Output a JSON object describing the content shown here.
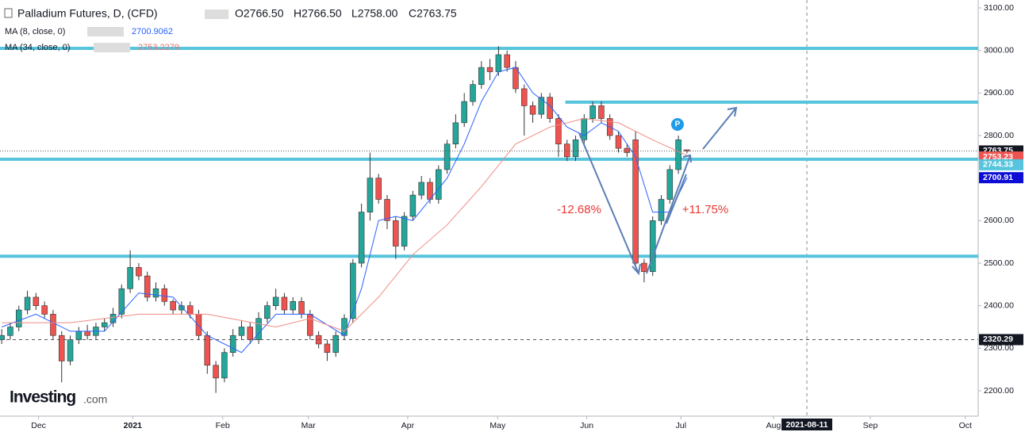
{
  "chart_data": {
    "type": "candlestick",
    "title": "Palladium Futures, D, (CFD)",
    "ohlc_labels": [
      "O2766.50",
      "H2766.50",
      "L2758.00",
      "C2763.75"
    ],
    "brand": [
      "Investing",
      ".com"
    ],
    "up_color": "#26a69a",
    "down_color": "#ef5350",
    "ylim": [
      2140.4,
      3118.6
    ],
    "xlim": [
      -0.2,
      114
    ],
    "yticks": [
      {
        "value": 2200,
        "label": "2200.00"
      },
      {
        "value": 2300,
        "label": "2300.00"
      },
      {
        "value": 2400,
        "label": "2400.00"
      },
      {
        "value": 2500,
        "label": "2500.00"
      },
      {
        "value": 2600,
        "label": "2600.00"
      },
      {
        "value": 2700,
        "label": "2700.00"
      },
      {
        "value": 2800,
        "label": "2800.00"
      },
      {
        "value": 2900,
        "label": "2900.00"
      },
      {
        "value": 3000,
        "label": "3000.00"
      },
      {
        "value": 3100,
        "label": "3100.00"
      }
    ],
    "xticks": [
      {
        "value": 4.3,
        "label": "Dec"
      },
      {
        "value": 15.3,
        "label": "2021"
      },
      {
        "value": 25.8,
        "label": "Feb"
      },
      {
        "value": 35.8,
        "label": "Mar"
      },
      {
        "value": 47.4,
        "label": "Apr"
      },
      {
        "value": 57.9,
        "label": "May"
      },
      {
        "value": 68.3,
        "label": "Jun"
      },
      {
        "value": 79.3,
        "label": "Jul"
      },
      {
        "value": 90.1,
        "label": "Aug"
      },
      {
        "value": 101.4,
        "label": "Sep"
      },
      {
        "value": 112.5,
        "label": "Oct"
      }
    ],
    "open": [
      2320,
      2330,
      2350,
      2390,
      2420,
      2400,
      2380,
      2330,
      2270,
      2320,
      2340,
      2330,
      2350,
      2360,
      2380,
      2440,
      2490,
      2470,
      2420,
      2440,
      2410,
      2390,
      2400,
      2380,
      2330,
      2260,
      2230,
      2290,
      2330,
      2350,
      2320,
      2370,
      2400,
      2420,
      2390,
      2410,
      2380,
      2330,
      2310,
      2290,
      2330,
      2370,
      2500,
      2620,
      2700,
      2650,
      2600,
      2540,
      2610,
      2660,
      2690,
      2650,
      2720,
      2780,
      2830,
      2880,
      2920,
      2960,
      2950,
      2990,
      2960,
      2910,
      2870,
      2850,
      2890,
      2840,
      2780,
      2750,
      2790,
      2840,
      2870,
      2840,
      2800,
      2770,
      2790,
      2500,
      2480,
      2600,
      2650,
      2720,
      2766.5
    ],
    "high": [
      2345,
      2360,
      2400,
      2435,
      2430,
      2410,
      2390,
      2340,
      2330,
      2350,
      2355,
      2360,
      2370,
      2395,
      2450,
      2530,
      2500,
      2480,
      2455,
      2450,
      2415,
      2410,
      2410,
      2390,
      2340,
      2270,
      2300,
      2345,
      2365,
      2360,
      2385,
      2410,
      2440,
      2430,
      2420,
      2420,
      2390,
      2340,
      2320,
      2340,
      2380,
      2510,
      2640,
      2760,
      2710,
      2660,
      2610,
      2620,
      2670,
      2705,
      2700,
      2730,
      2790,
      2850,
      2900,
      2930,
      2975,
      2980,
      3010,
      3000,
      2975,
      2920,
      2880,
      2900,
      2900,
      2850,
      2790,
      2800,
      2850,
      2880,
      2880,
      2850,
      2810,
      2780,
      2810,
      2510,
      2610,
      2660,
      2730,
      2800,
      2766.5
    ],
    "low": [
      2310,
      2320,
      2340,
      2380,
      2390,
      2370,
      2320,
      2220,
      2260,
      2310,
      2320,
      2320,
      2340,
      2350,
      2370,
      2430,
      2460,
      2410,
      2410,
      2400,
      2380,
      2380,
      2370,
      2320,
      2240,
      2195,
      2220,
      2280,
      2320,
      2310,
      2310,
      2360,
      2390,
      2380,
      2380,
      2370,
      2320,
      2300,
      2270,
      2280,
      2320,
      2360,
      2490,
      2600,
      2640,
      2580,
      2510,
      2530,
      2600,
      2650,
      2640,
      2640,
      2710,
      2770,
      2820,
      2870,
      2910,
      2930,
      2940,
      2950,
      2900,
      2800,
      2830,
      2840,
      2830,
      2750,
      2740,
      2740,
      2780,
      2830,
      2830,
      2790,
      2760,
      2750,
      2490,
      2455,
      2470,
      2590,
      2640,
      2710,
      2758
    ],
    "close": [
      2330,
      2350,
      2390,
      2420,
      2400,
      2380,
      2330,
      2270,
      2320,
      2340,
      2330,
      2350,
      2360,
      2380,
      2440,
      2490,
      2470,
      2420,
      2440,
      2410,
      2390,
      2400,
      2380,
      2330,
      2260,
      2230,
      2290,
      2330,
      2350,
      2320,
      2370,
      2400,
      2420,
      2390,
      2410,
      2380,
      2330,
      2310,
      2290,
      2330,
      2370,
      2500,
      2620,
      2700,
      2650,
      2600,
      2540,
      2610,
      2660,
      2690,
      2650,
      2720,
      2780,
      2830,
      2880,
      2920,
      2960,
      2950,
      2990,
      2960,
      2910,
      2870,
      2850,
      2890,
      2840,
      2780,
      2750,
      2790,
      2840,
      2870,
      2840,
      2800,
      2770,
      2760,
      2500,
      2480,
      2600,
      2650,
      2720,
      2790,
      2763.75
    ],
    "series": [
      {
        "name": "MA (8, close, 0)",
        "value_label": "2700.9062",
        "color": "#2962ff",
        "x": [
          0,
          4,
          8,
          12,
          16,
          20,
          24,
          28,
          32,
          36,
          40,
          42,
          44,
          46,
          48,
          50,
          52,
          54,
          56,
          58,
          60,
          62,
          64,
          66,
          68,
          70,
          72,
          74,
          76,
          78,
          80
        ],
        "values": [
          2350,
          2380,
          2340,
          2340,
          2430,
          2420,
          2330,
          2290,
          2380,
          2380,
          2330,
          2440,
          2600,
          2610,
          2600,
          2650,
          2700,
          2780,
          2880,
          2950,
          2960,
          2900,
          2870,
          2820,
          2800,
          2830,
          2810,
          2750,
          2620,
          2620,
          2700.9062
        ]
      },
      {
        "name": "MA (34, close, 0)",
        "value_label": "2753.2279",
        "color": "#f28b82",
        "x": [
          0,
          8,
          16,
          24,
          32,
          36,
          40,
          44,
          48,
          52,
          56,
          60,
          64,
          68,
          72,
          76,
          80
        ],
        "values": [
          2360,
          2360,
          2380,
          2380,
          2350,
          2370,
          2340,
          2420,
          2520,
          2590,
          2680,
          2780,
          2820,
          2840,
          2830,
          2790,
          2753.2279
        ]
      }
    ],
    "levels": [
      {
        "value": 3005.04,
        "x_start": -0.2
      },
      {
        "value": 2878.51,
        "x_start": 65.8
      },
      {
        "value": 2744.33,
        "x_start": -0.2
      },
      {
        "value": 2516.37,
        "x_start": -0.2
      }
    ],
    "level_color": "#56c4dc",
    "price_labels": [
      {
        "value": 2763.75,
        "color": "#131722",
        "line": "dotted"
      },
      {
        "value": 2753.23,
        "color": "#ef5350"
      },
      {
        "value": 2744.33,
        "color": "#56c4dc"
      },
      {
        "value": 2700.91,
        "color": "#0d0dd6"
      },
      {
        "value": 2320.29,
        "color": "#131722",
        "line": "dashed"
      }
    ],
    "x_marker": {
      "value": 94,
      "label": "2021-08-11"
    },
    "annotations": [
      "-12.68%",
      "+11.75%",
      "P"
    ]
  }
}
